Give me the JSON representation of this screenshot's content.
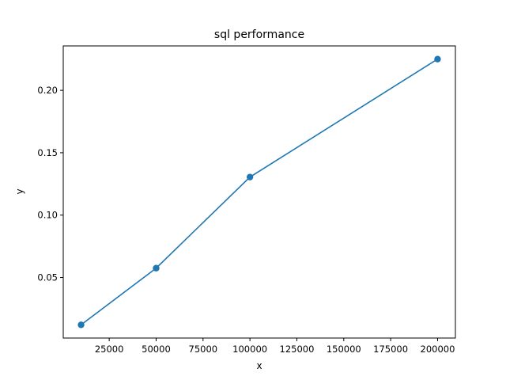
{
  "chart_data": {
    "type": "line",
    "title": "sql performance",
    "xlabel": "x",
    "ylabel": "y",
    "x": [
      10000,
      50000,
      100000,
      200000
    ],
    "series": [
      {
        "values": [
          0.0121,
          0.0575,
          0.1305,
          0.225
        ],
        "marker": "circle"
      }
    ],
    "xlim": [
      500,
      209500
    ],
    "ylim": [
      0.0015,
      0.2356
    ],
    "xticks": [
      25000,
      50000,
      75000,
      100000,
      125000,
      150000,
      175000,
      200000
    ],
    "xtick_labels": [
      "25000",
      "50000",
      "75000",
      "100000",
      "125000",
      "150000",
      "175000",
      "200000"
    ],
    "yticks": [
      0.05,
      0.1,
      0.15,
      0.2
    ],
    "ytick_labels": [
      "0.05",
      "0.10",
      "0.15",
      "0.20"
    ],
    "grid": false,
    "legend": false,
    "colors": {
      "line": "#1f77b4",
      "axes": "#000000"
    }
  }
}
